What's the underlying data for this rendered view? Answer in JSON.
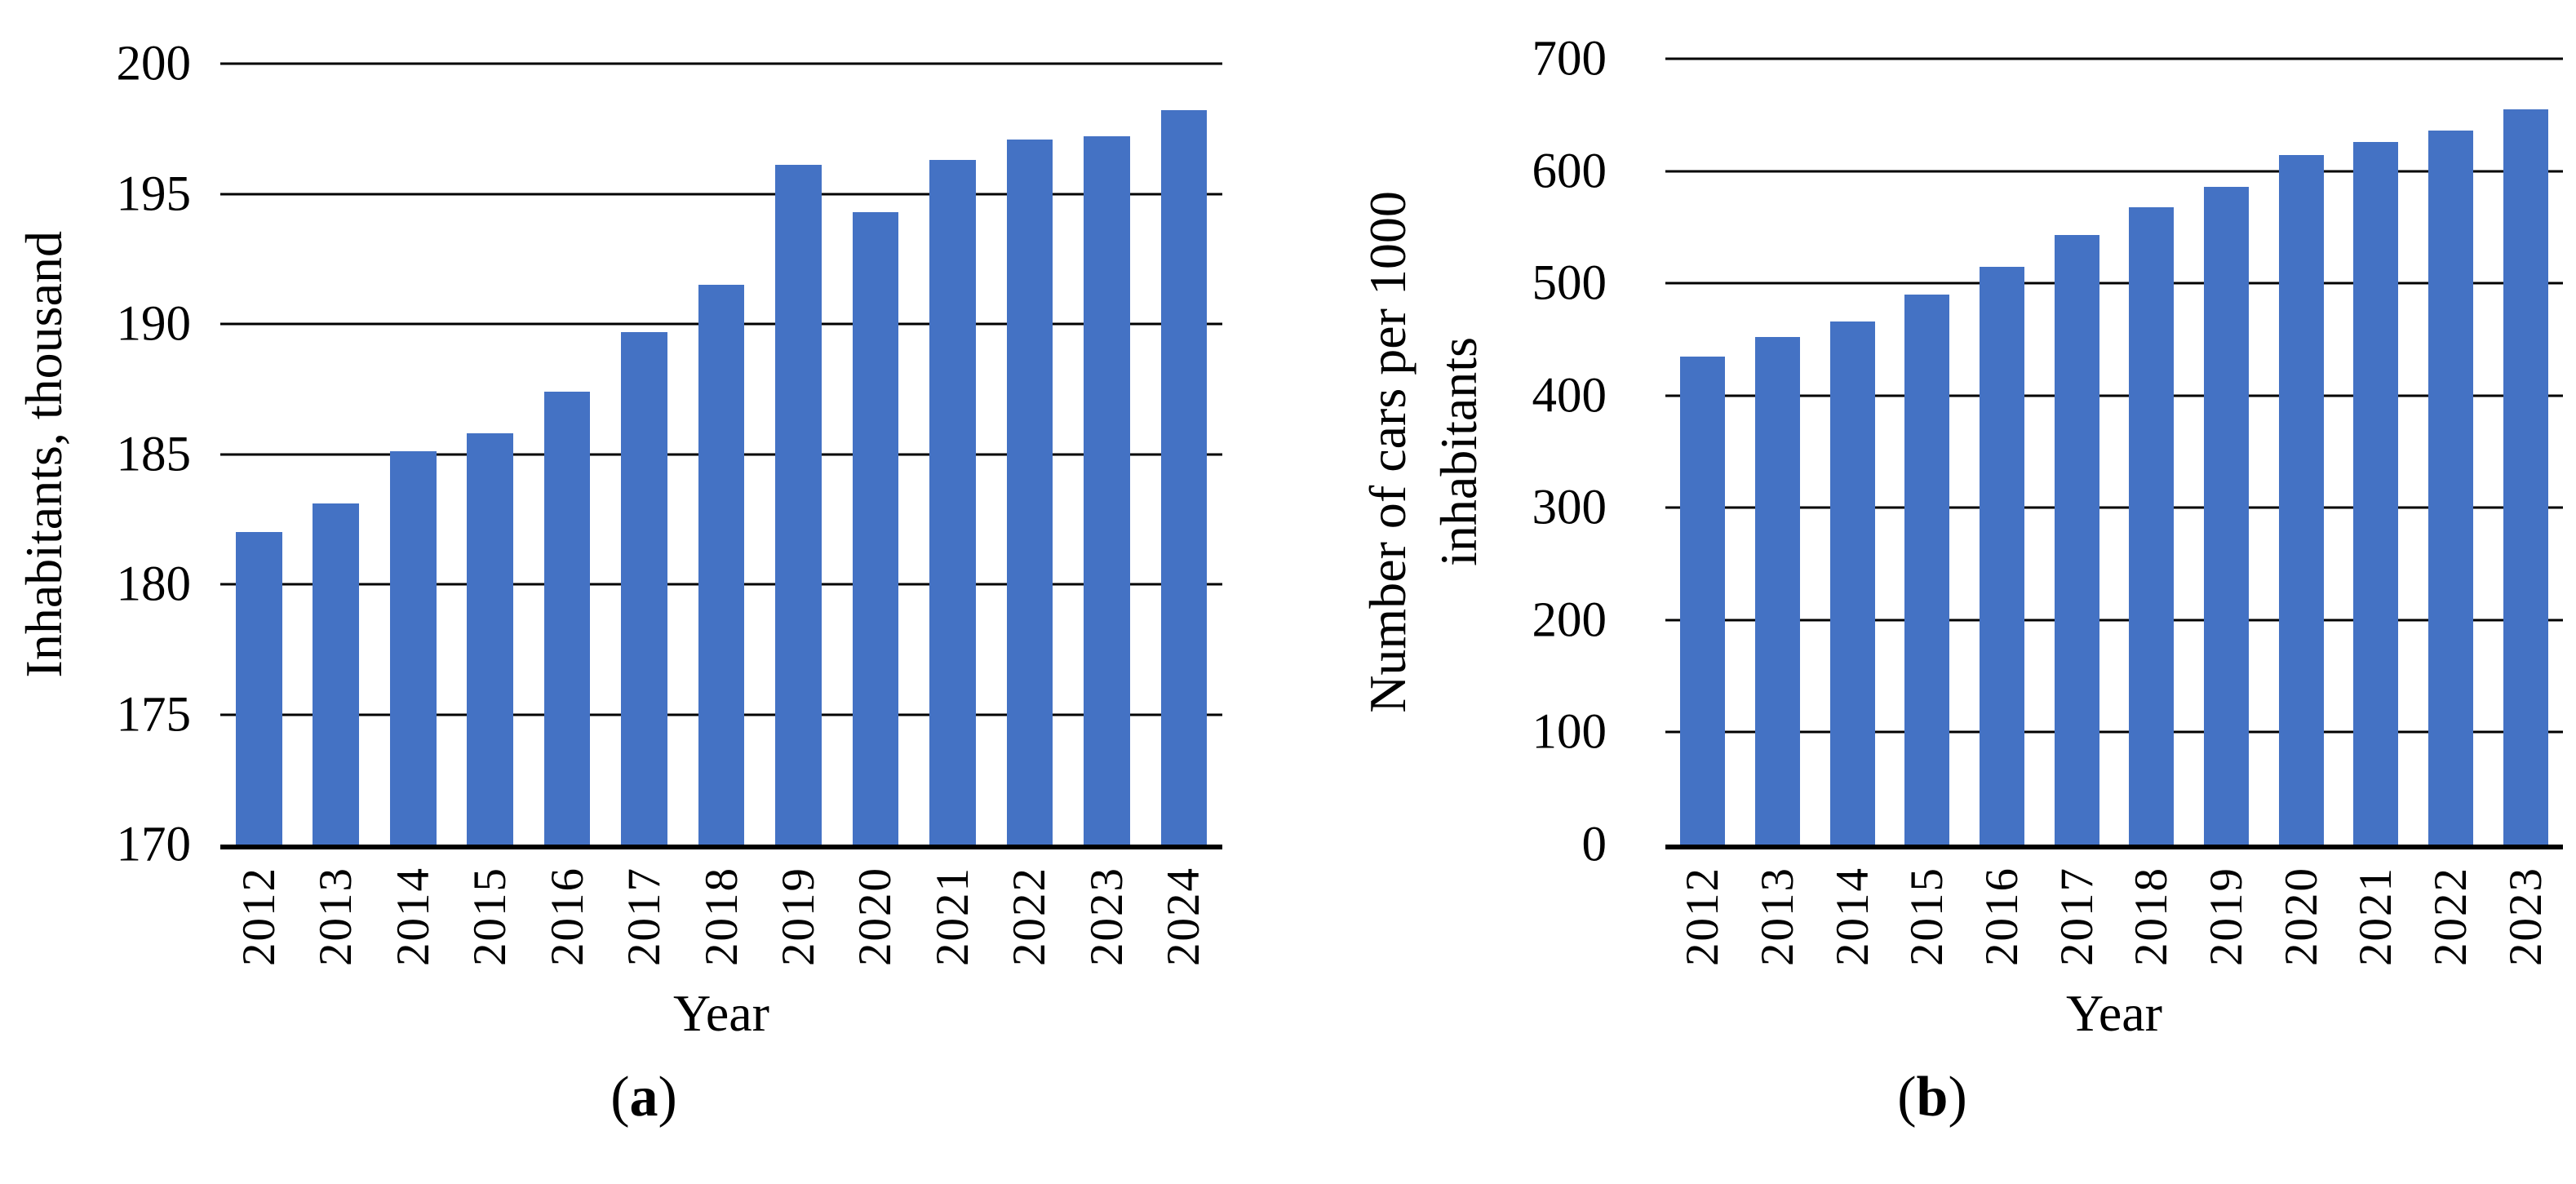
{
  "colors": {
    "bar": "#4472C4",
    "grid": "#000000",
    "axis": "#000000",
    "text": "#000000",
    "background": "#FFFFFF"
  },
  "chart_data": [
    {
      "id": "a",
      "type": "bar",
      "title": "",
      "categories": [
        "2012",
        "2013",
        "2014",
        "2015",
        "2016",
        "2017",
        "2018",
        "2019",
        "2020",
        "2021",
        "2022",
        "2023",
        "2024"
      ],
      "values": [
        182.0,
        183.1,
        185.1,
        185.8,
        187.4,
        189.7,
        191.5,
        196.1,
        194.3,
        196.3,
        197.1,
        197.2,
        198.2
      ],
      "xlabel": "Year",
      "ylabel": "Inhabitants, thousand",
      "ylabel_lines": [
        "Inhabitants, thousand"
      ],
      "ylim": [
        170,
        200
      ],
      "yticks": [
        170,
        175,
        180,
        185,
        190,
        195,
        200
      ],
      "grid": true,
      "legend": "none",
      "bar_color": "#4472C4",
      "caption": {
        "open": "(",
        "letter": "a",
        "close": ")"
      }
    },
    {
      "id": "b",
      "type": "bar",
      "title": "",
      "categories": [
        "2012",
        "2013",
        "2014",
        "2015",
        "2016",
        "2017",
        "2018",
        "2019",
        "2020",
        "2021",
        "2022",
        "2023"
      ],
      "values": [
        435,
        452,
        466,
        490,
        515,
        543,
        568,
        586,
        614,
        626,
        636,
        655
      ],
      "xlabel": "Year",
      "ylabel": "Number of cars per 1000 inhabitants",
      "ylabel_lines": [
        "Number of cars per 1000",
        "inhabitants"
      ],
      "ylim": [
        0,
        700
      ],
      "yticks": [
        0,
        100,
        200,
        300,
        400,
        500,
        600,
        700
      ],
      "grid": true,
      "legend": "none",
      "bar_color": "#4472C4",
      "caption": {
        "open": "(",
        "letter": "b",
        "close": ")"
      }
    }
  ]
}
